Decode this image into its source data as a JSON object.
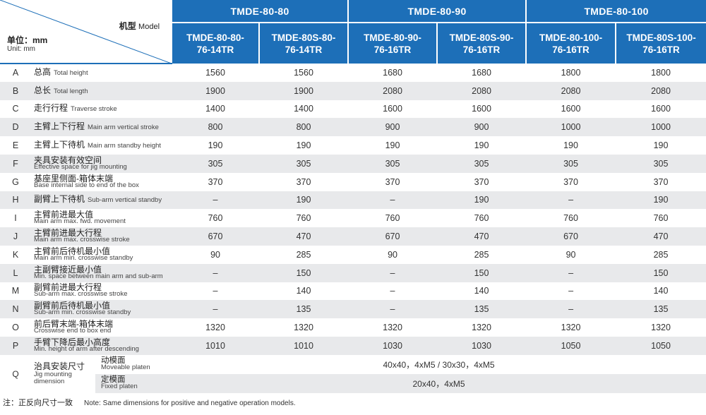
{
  "header": {
    "model_cn": "机型",
    "model_en": "Model",
    "unit_cn": "单位：mm",
    "unit_en": "Unit: mm",
    "groups": [
      "TMDE-80-80",
      "TMDE-80-90",
      "TMDE-80-100"
    ],
    "models": [
      [
        "TMDE-80-80-",
        "76-14TR"
      ],
      [
        "TMDE-80S-80-",
        "76-14TR"
      ],
      [
        "TMDE-80-90-",
        "76-16TR"
      ],
      [
        "TMDE-80S-90-",
        "76-16TR"
      ],
      [
        "TMDE-80-100-",
        "76-16TR"
      ],
      [
        "TMDE-80S-100-",
        "76-16TR"
      ]
    ]
  },
  "rows": [
    {
      "letter": "A",
      "cn": "总高",
      "en": "Total height",
      "values": [
        "1560",
        "1560",
        "1680",
        "1680",
        "1800",
        "1800"
      ]
    },
    {
      "letter": "B",
      "cn": "总长",
      "en": "Total length",
      "values": [
        "1900",
        "1900",
        "2080",
        "2080",
        "2080",
        "2080"
      ]
    },
    {
      "letter": "C",
      "cn": "走行行程",
      "en": "Traverse stroke",
      "values": [
        "1400",
        "1400",
        "1600",
        "1600",
        "1600",
        "1600"
      ]
    },
    {
      "letter": "D",
      "cn": "主臂上下行程",
      "en": "Main arm vertical stroke",
      "values": [
        "800",
        "800",
        "900",
        "900",
        "1000",
        "1000"
      ]
    },
    {
      "letter": "E",
      "cn": "主臂上下待机",
      "en": "Main arm standby height",
      "values": [
        "190",
        "190",
        "190",
        "190",
        "190",
        "190"
      ]
    },
    {
      "letter": "F",
      "cn": "夹具安装有效空间",
      "en": "Effective space for jig mounting",
      "values": [
        "305",
        "305",
        "305",
        "305",
        "305",
        "305"
      ]
    },
    {
      "letter": "G",
      "cn": "基座里侧面-箱体末端",
      "en": "Base internal side to end of the box",
      "values": [
        "370",
        "370",
        "370",
        "370",
        "370",
        "370"
      ]
    },
    {
      "letter": "H",
      "cn": "副臂上下待机",
      "en": "Sub-arm vertical standby",
      "values": [
        "–",
        "190",
        "–",
        "190",
        "–",
        "190"
      ]
    },
    {
      "letter": "I",
      "cn": "主臂前进最大值",
      "en": "Main arm max. fwd. movement",
      "values": [
        "760",
        "760",
        "760",
        "760",
        "760",
        "760"
      ]
    },
    {
      "letter": "J",
      "cn": "主臂前进最大行程",
      "en": "Main arm max. crosswise stroke",
      "values": [
        "670",
        "470",
        "670",
        "470",
        "670",
        "470"
      ]
    },
    {
      "letter": "K",
      "cn": "主臂前后待机最小值",
      "en": "Main arm min. crosswise standby",
      "values": [
        "90",
        "285",
        "90",
        "285",
        "90",
        "285"
      ]
    },
    {
      "letter": "L",
      "cn": "主副臂接近最小值",
      "en": "Min. space between main arm and sub-arm",
      "values": [
        "–",
        "150",
        "–",
        "150",
        "–",
        "150"
      ]
    },
    {
      "letter": "M",
      "cn": "副臂前进最大行程",
      "en": "Sub-arm max. crosswise stroke",
      "values": [
        "–",
        "140",
        "–",
        "140",
        "–",
        "140"
      ]
    },
    {
      "letter": "N",
      "cn": "副臂前后待机最小值",
      "en": "Sub-arm min. crosswise standby",
      "values": [
        "–",
        "135",
        "–",
        "135",
        "–",
        "135"
      ]
    },
    {
      "letter": "O",
      "cn": "前后臂末端-箱体末端",
      "en": "Crosswise end to box end",
      "values": [
        "1320",
        "1320",
        "1320",
        "1320",
        "1320",
        "1320"
      ]
    },
    {
      "letter": "P",
      "cn": "手臂下降后最小高度",
      "en": "Min. height of arm after descending",
      "values": [
        "1010",
        "1010",
        "1030",
        "1030",
        "1050",
        "1050"
      ]
    }
  ],
  "q": {
    "letter": "Q",
    "cn": "治具安装尺寸",
    "en_line1": "Jig mounting",
    "en_line2": "dimension",
    "sub": [
      {
        "cn": "动模面",
        "en": "Moveable platen",
        "value": "40x40，4xM5 / 30x30，4xM5"
      },
      {
        "cn": "定模面",
        "en": "Fixed platen",
        "value": "20x40，4xM5"
      }
    ]
  },
  "note": {
    "cn": "注：正反向尺寸一致",
    "en": "Note: Same dimensions for positive and negative operation models."
  },
  "colors": {
    "header_blue": "#1d6fb8",
    "row_alt_gray": "#e8e9eb"
  }
}
